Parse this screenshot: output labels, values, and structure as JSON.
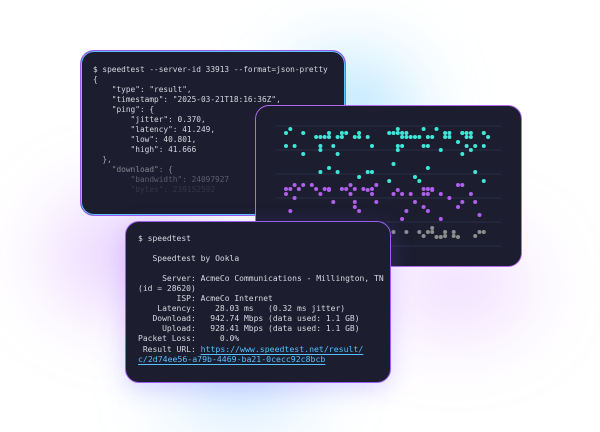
{
  "json_terminal": {
    "lines": [
      "$ speedtest --server-id 33913 --format=json-pretty",
      "{",
      "    \"type\": \"result\",",
      "    \"timestamp\": \"2025-03-21T18:16:36Z\",",
      "    \"ping\": {",
      "        \"jitter\": 0.370,",
      "        \"latency\": 41.249,",
      "        \"low\": 40.801,",
      "        \"high\": 41.666",
      "  },",
      "    \"download\": {",
      "        \"bandwidth\": 24097927",
      "        \"bytes\": 239152592"
    ]
  },
  "chart": {
    "colors": {
      "ping": "#3ee8d8",
      "download": "#b05ff0",
      "upload": "#8e8e8e",
      "grid": "#2a2d48"
    }
  },
  "cli_terminal": {
    "lines": [
      "$ speedtest",
      "",
      "   Speedtest by Ookla",
      "",
      "     Server: AcmeCo Communications - Millington, TN",
      "(id = 28620)",
      "        ISP: AcmeCo Internet",
      "    Latency:    28.03 ms   (0.32 ms jitter)",
      "   Download:   942.74 Mbps (data used: 1.1 GB)",
      "     Upload:   928.41 Mbps (data used: 1.1 GB)",
      "Packet Loss:     0.0%"
    ],
    "result_label": " Result URL: ",
    "result_url_1": "https://www.speedtest.net/result/",
    "result_url_2": "c/2d74ee56-a79b-4469-ba21-0cecc92c8bcb"
  }
}
